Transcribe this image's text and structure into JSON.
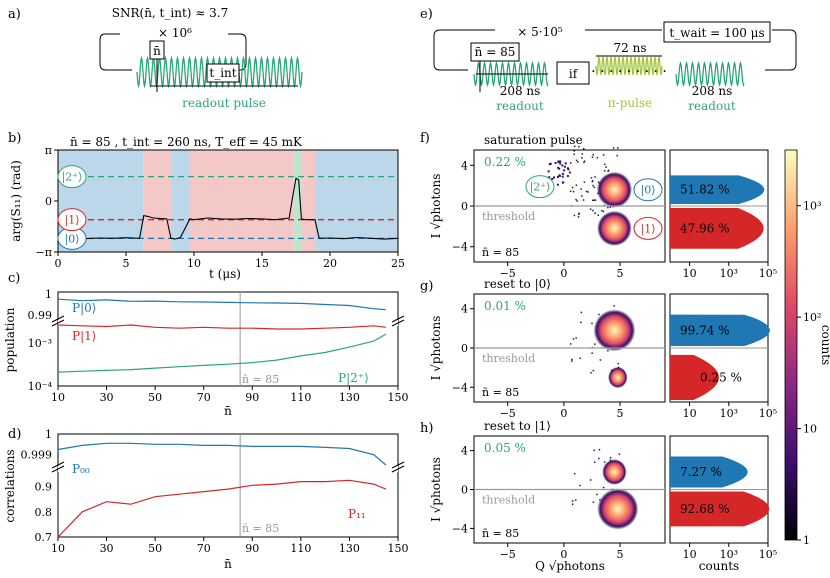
{
  "panel_labels": {
    "a": "a)",
    "b": "b)",
    "c": "c)",
    "d": "d)",
    "e": "e)",
    "f": "f)",
    "g": "g)",
    "h": "h)"
  },
  "colors": {
    "teal": "#2aa77a",
    "blue": "#1f77b4",
    "red": "#d62728",
    "lime": "#a5c43c",
    "gray": "#999999",
    "state0_bg": "#bcd6ea",
    "state1_bg": "#f5c8c8",
    "state2_bg": "#bfe4cf"
  },
  "panel_a": {
    "snr": "SNR(n̄, t_int) ≈ 3.7",
    "repeat": "× 10⁶",
    "nbar": "n̄",
    "tint": "t_int",
    "caption": "readout pulse"
  },
  "panel_e": {
    "repeat": "× 5·10⁵",
    "twait": "t_wait = 100 μs",
    "nbar": "n̄ = 85",
    "if_label": "if",
    "pi_time": "72 ns",
    "readout1_time": "208 ns",
    "readout1": "readout",
    "pi_pulse": "π-pulse",
    "readout2_time": "208 ns",
    "readout2": "readout"
  },
  "chart_data": [
    {
      "id": "b",
      "type": "line",
      "title": "n̄ = 85 , t_int = 260 ns, T_eff = 45 mK",
      "xlabel": "t (μs)",
      "ylabel": "arg(S₁₁) (rad)",
      "xlim": [
        0,
        25
      ],
      "ylim": [
        -3.1416,
        3.1416
      ],
      "xticks": [
        "0",
        "5",
        "10",
        "15",
        "20",
        "25"
      ],
      "yticks": [
        "π",
        "0",
        "−π"
      ],
      "state_levels": [
        {
          "name": "|0⟩",
          "value": -2.3
        },
        {
          "name": "|1⟩",
          "value": -1.15
        },
        {
          "name": "|2⁺⟩",
          "value": 1.5
        }
      ],
      "regions": [
        {
          "from": 0,
          "to": 6.3,
          "state": "0"
        },
        {
          "from": 6.3,
          "to": 8.3,
          "state": "1"
        },
        {
          "from": 8.3,
          "to": 9.7,
          "state": "0"
        },
        {
          "from": 9.7,
          "to": 17.3,
          "state": "1"
        },
        {
          "from": 17.3,
          "to": 17.9,
          "state": "2"
        },
        {
          "from": 17.9,
          "to": 18.9,
          "state": "1"
        },
        {
          "from": 18.9,
          "to": 25,
          "state": "0"
        }
      ],
      "trace": {
        "t": [
          0,
          1,
          2,
          3,
          4,
          5,
          6,
          6.3,
          6.6,
          7,
          8,
          8.3,
          8.6,
          9,
          9.7,
          10,
          11,
          12,
          13,
          14,
          15,
          16,
          17,
          17.3,
          17.5,
          17.7,
          17.9,
          18.2,
          18.9,
          19.2,
          20,
          21,
          22,
          23,
          24,
          25
        ],
        "phase": [
          -2.3,
          -2.25,
          -2.32,
          -2.28,
          -2.3,
          -2.26,
          -2.3,
          -0.9,
          -0.95,
          -1.05,
          -1.1,
          -2.3,
          -2.35,
          -2.25,
          -1.1,
          -1.15,
          -1.05,
          -1.1,
          -1.12,
          -1.08,
          -1.1,
          -1.15,
          -1.05,
          0.5,
          1.4,
          1.3,
          -1.1,
          -1.15,
          -1.15,
          -2.3,
          -2.28,
          -2.32,
          -2.25,
          -2.3,
          -2.35,
          -2.3
        ]
      }
    },
    {
      "id": "c",
      "type": "line",
      "xlabel": "n̄",
      "ylabel": "population",
      "xlim": [
        10,
        150
      ],
      "xticks": [
        "10",
        "30",
        "50",
        "70",
        "90",
        "110",
        "130",
        "150"
      ],
      "yticks_top": [
        "1",
        "0.99"
      ],
      "yticks_bottom": [
        "10⁻³",
        "10⁻⁴"
      ],
      "marker": "n̄ = 85",
      "x": [
        10,
        20,
        30,
        40,
        50,
        60,
        70,
        80,
        90,
        100,
        110,
        120,
        130,
        140,
        145
      ],
      "series": [
        {
          "name": "P|0⟩",
          "values": [
            0.9975,
            0.9968,
            0.9972,
            0.9965,
            0.9966,
            0.9963,
            0.9962,
            0.996,
            0.9958,
            0.9957,
            0.9955,
            0.995,
            0.9945,
            0.993,
            0.9925
          ]
        },
        {
          "name": "P|1⟩",
          "values": [
            0.0026,
            0.0025,
            0.0024,
            0.0026,
            0.0023,
            0.0022,
            0.0023,
            0.0022,
            0.0022,
            0.0021,
            0.0021,
            0.0022,
            0.0023,
            0.0025,
            0.0023
          ]
        },
        {
          "name": "P|2⁺⟩",
          "values": [
            0.00021,
            0.00022,
            0.00023,
            0.00024,
            0.00026,
            0.00028,
            0.0003,
            0.00032,
            0.00035,
            0.0004,
            0.0005,
            0.0006,
            0.0008,
            0.0011,
            0.0016
          ]
        }
      ]
    },
    {
      "id": "d",
      "type": "line",
      "xlabel": "n̄",
      "ylabel": "correlations",
      "xlim": [
        10,
        150
      ],
      "xticks": [
        "10",
        "30",
        "50",
        "70",
        "90",
        "110",
        "130",
        "150"
      ],
      "yticks_top": [
        "1",
        "0.999"
      ],
      "yticks_bottom": [
        "0.9",
        "0.8",
        "0.7"
      ],
      "marker": "n̄ = 85",
      "x": [
        10,
        20,
        30,
        40,
        50,
        60,
        70,
        80,
        90,
        100,
        110,
        120,
        130,
        140,
        145
      ],
      "series": [
        {
          "name": "P₀₀",
          "values": [
            0.99925,
            0.99945,
            0.99955,
            0.99955,
            0.9995,
            0.9995,
            0.99945,
            0.99945,
            0.9994,
            0.9994,
            0.9994,
            0.99935,
            0.9993,
            0.999,
            0.9985
          ]
        },
        {
          "name": "P₁₁",
          "values": [
            0.7,
            0.8,
            0.84,
            0.83,
            0.86,
            0.87,
            0.88,
            0.89,
            0.905,
            0.91,
            0.92,
            0.92,
            0.925,
            0.91,
            0.89
          ]
        }
      ]
    },
    {
      "id": "f",
      "type": "heatmap",
      "title": "saturation pulse",
      "xlabel": "Q √photons",
      "ylabel": "I √photons",
      "xlim": [
        -8,
        9
      ],
      "ylim": [
        -5.5,
        5.5
      ],
      "xticks": [
        "−5",
        "0",
        "5"
      ],
      "yticks": [
        "4",
        "0",
        "−4"
      ],
      "threshold_label": "threshold",
      "threshold_I": 0,
      "nbar": "n̄ = 85",
      "leak_pct": "0.22 %",
      "state_top": "|0⟩",
      "state_bottom": "|1⟩",
      "state_leak": "|2⁺⟩",
      "blobs": [
        {
          "Q": 4.5,
          "I": 1.6,
          "weight": 0.52
        },
        {
          "Q": 4.5,
          "I": -2.2,
          "weight": 0.48
        }
      ],
      "hist": {
        "xlabel": "counts",
        "xticks": [
          "10",
          "10³",
          "10⁵"
        ],
        "top_pct": "51.82 %",
        "bottom_pct": "47.96 %",
        "top_val": 51.82,
        "bottom_val": 47.96
      }
    },
    {
      "id": "g",
      "type": "heatmap",
      "title": "reset to |0⟩",
      "xlabel": "Q √photons",
      "ylabel": "I √photons",
      "xlim": [
        -8,
        9
      ],
      "ylim": [
        -5.5,
        5.5
      ],
      "xticks": [
        "−5",
        "0",
        "5"
      ],
      "yticks": [
        "4",
        "0",
        "−4"
      ],
      "threshold_label": "threshold",
      "threshold_I": 0,
      "nbar": "n̄ = 85",
      "leak_pct": "0.01 %",
      "blobs": [
        {
          "Q": 4.5,
          "I": 1.8,
          "weight": 0.997
        },
        {
          "Q": 4.8,
          "I": -3.0,
          "weight": 0.003
        }
      ],
      "hist": {
        "xlabel": "counts",
        "xticks": [
          "10",
          "10³",
          "10⁵"
        ],
        "top_pct": "99.74 %",
        "bottom_pct": "0.25 %",
        "top_val": 99.74,
        "bottom_val": 0.25
      }
    },
    {
      "id": "h",
      "type": "heatmap",
      "title": "reset to |1⟩",
      "xlabel": "Q √photons",
      "ylabel": "I √photons",
      "xlim": [
        -8,
        9
      ],
      "ylim": [
        -5.5,
        5.5
      ],
      "xticks": [
        "−5",
        "0",
        "5"
      ],
      "yticks": [
        "4",
        "0",
        "−4"
      ],
      "threshold_label": "threshold",
      "threshold_I": 0,
      "nbar": "n̄ = 85",
      "leak_pct": "0.05 %",
      "blobs": [
        {
          "Q": 4.5,
          "I": 1.8,
          "weight": 0.07
        },
        {
          "Q": 4.8,
          "I": -2.0,
          "weight": 0.93
        }
      ],
      "hist": {
        "xlabel": "counts",
        "xticks": [
          "10",
          "10³",
          "10⁵"
        ],
        "top_pct": "7.27 %",
        "bottom_pct": "92.68 %",
        "top_val": 7.27,
        "bottom_val": 92.68
      }
    }
  ],
  "colorbar": {
    "label": "counts",
    "ticks": [
      "10³",
      "10²",
      "10",
      "1"
    ]
  }
}
